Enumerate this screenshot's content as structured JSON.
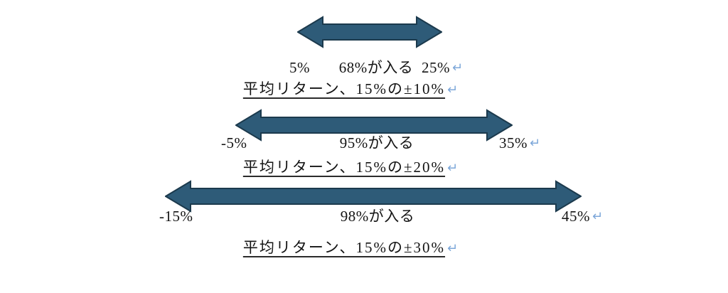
{
  "figure": {
    "background": "#ffffff"
  },
  "colors": {
    "arrow_fill": "#2e5b78",
    "arrow_stroke": "#1c3a4d",
    "text": "#141414",
    "line_break_mark": "#7da7d9"
  },
  "marks": {
    "line_break": "↵"
  },
  "groups": [
    {
      "id": "band-68",
      "left_label": "5%",
      "center_label": "68%が入る",
      "right_label": "25%",
      "caption": "平均リターン、15%の±10%"
    },
    {
      "id": "band-95",
      "left_label": "-5%",
      "center_label": "95%が入る",
      "right_label": "35%",
      "caption": "平均リターン、15%の±20%"
    },
    {
      "id": "band-98",
      "left_label": "-15%",
      "center_label": "98%が入る",
      "right_label": "45%",
      "caption": "平均リターン、15%の±30%"
    }
  ]
}
